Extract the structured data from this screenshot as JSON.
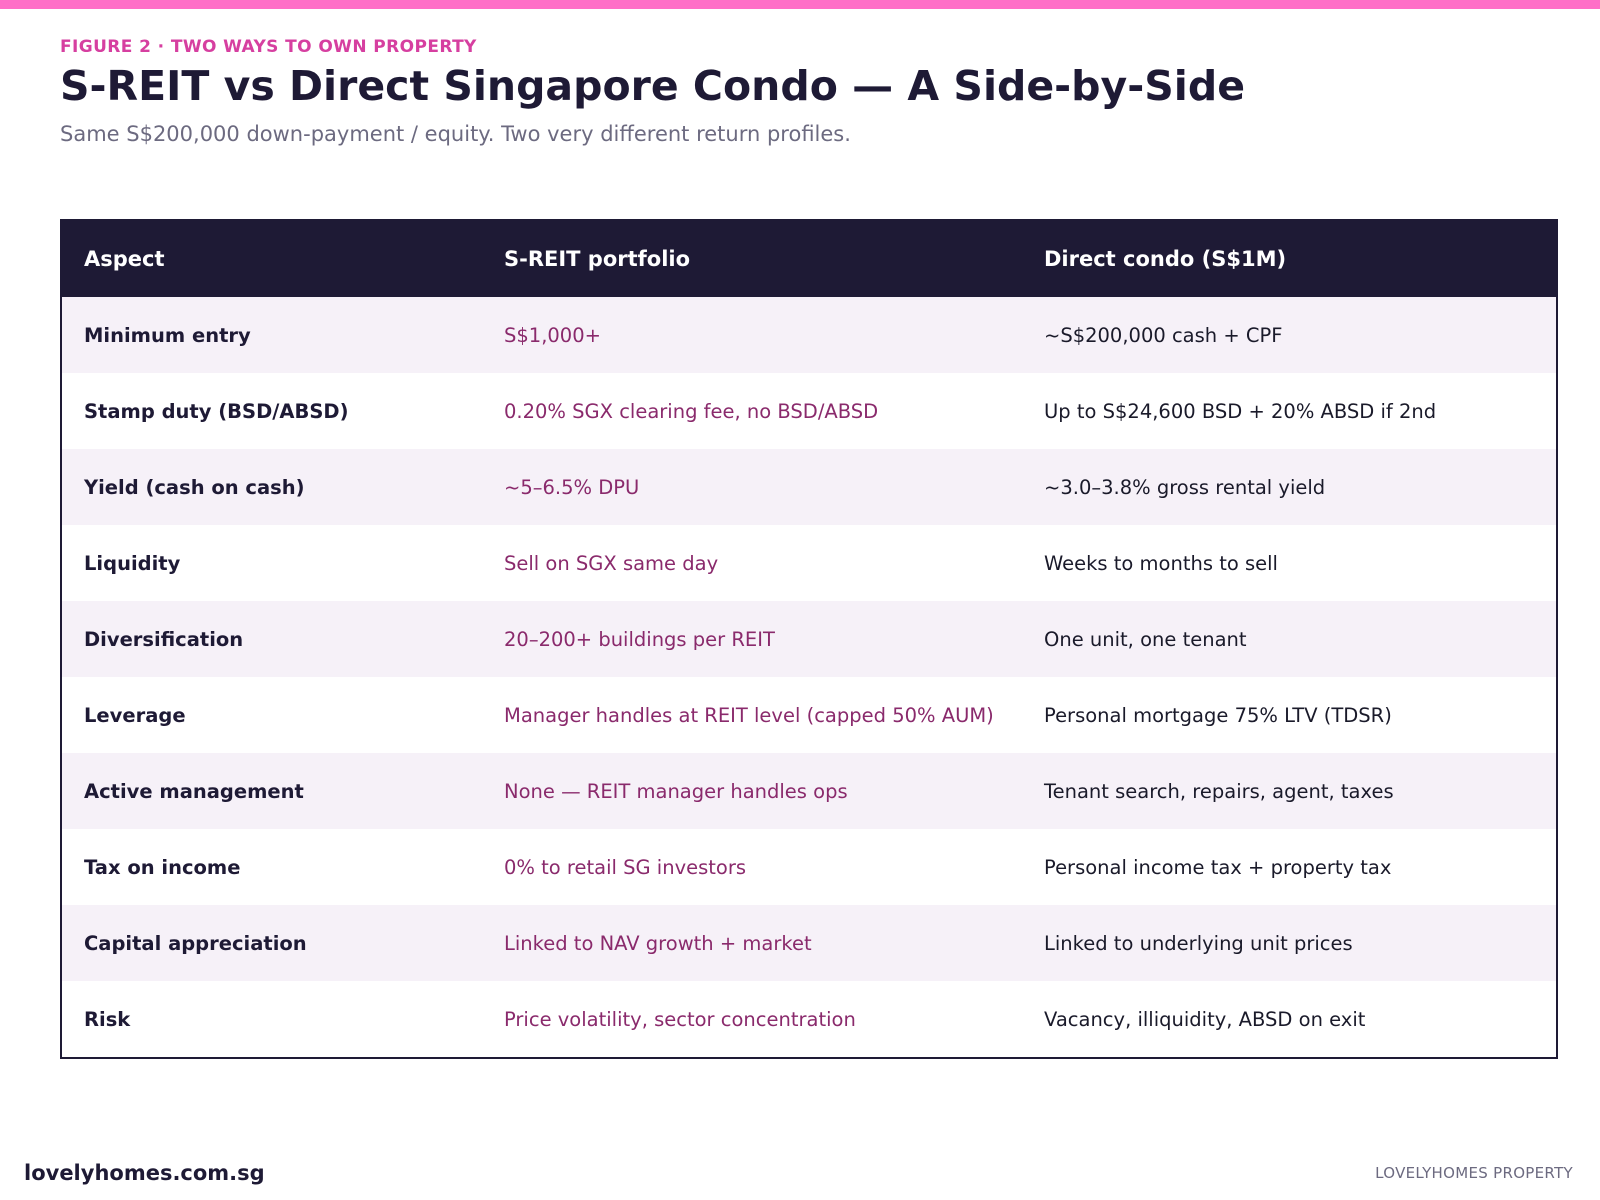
{
  "figure_label": "FIGURE 2 · TWO WAYS TO OWN PROPERTY",
  "title": "S-REIT vs Direct Singapore Condo — A Side-by-Side",
  "subtitle": "Same S$200,000 down-payment / equity. Two very different return profiles.",
  "colors": {
    "accent_bar": "#ff6ec7",
    "eyebrow": "#d63fa0",
    "header_bg": "#1e1a35",
    "reit_text": "#8a2a6c",
    "stripe": "#f6f1f8"
  },
  "table": {
    "columns": [
      "Aspect",
      "S-REIT portfolio",
      "Direct condo (S$1M)"
    ],
    "rows": [
      {
        "aspect": "Minimum entry",
        "reit": "S$1,000+",
        "condo": "~S$200,000 cash + CPF"
      },
      {
        "aspect": "Stamp duty (BSD/ABSD)",
        "reit": "0.20% SGX clearing fee, no BSD/ABSD",
        "condo": "Up to S$24,600 BSD + 20% ABSD if 2nd"
      },
      {
        "aspect": "Yield (cash on cash)",
        "reit": "~5–6.5% DPU",
        "condo": "~3.0–3.8% gross rental yield"
      },
      {
        "aspect": "Liquidity",
        "reit": "Sell on SGX same day",
        "condo": "Weeks to months to sell"
      },
      {
        "aspect": "Diversification",
        "reit": "20–200+ buildings per REIT",
        "condo": "One unit, one tenant"
      },
      {
        "aspect": "Leverage",
        "reit": "Manager handles at REIT level (capped 50% AUM)",
        "condo": "Personal mortgage 75% LTV (TDSR)"
      },
      {
        "aspect": "Active management",
        "reit": "None — REIT manager handles ops",
        "condo": "Tenant search, repairs, agent, taxes"
      },
      {
        "aspect": "Tax on income",
        "reit": "0% to retail SG investors",
        "condo": "Personal income tax + property tax"
      },
      {
        "aspect": "Capital appreciation",
        "reit": "Linked to NAV growth + market",
        "condo": "Linked to underlying unit prices"
      },
      {
        "aspect": "Risk",
        "reit": "Price volatility, sector concentration",
        "condo": "Vacancy, illiquidity, ABSD on exit"
      }
    ]
  },
  "footer": {
    "site": "lovelyhomes.com.sg",
    "brand": "LOVELYHOMES PROPERTY"
  }
}
